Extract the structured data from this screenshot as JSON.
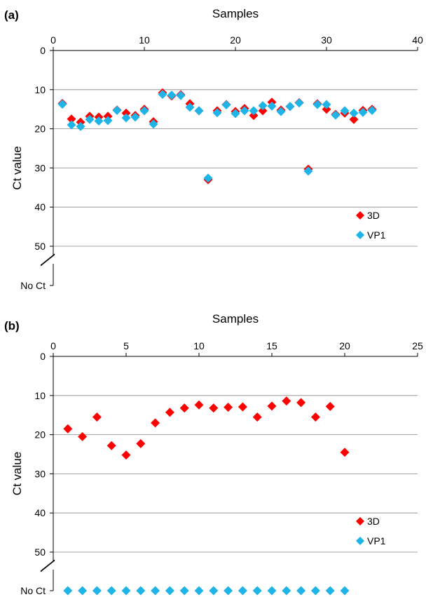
{
  "chart_data": [
    {
      "type": "scatter",
      "panel_label": "(a)",
      "xlabel": "Samples",
      "ylabel": "Ct value",
      "xlim": [
        0,
        40
      ],
      "ylim": [
        0,
        50
      ],
      "y_reversed": true,
      "x_axis_position": "top",
      "x_ticks": [
        0,
        10,
        20,
        30,
        40
      ],
      "y_ticks": [
        0,
        10,
        20,
        30,
        40,
        50
      ],
      "y_extra_tick": "No Ct",
      "axis_break": true,
      "grid": "horizontal",
      "legend_position": "bottom-right",
      "series": [
        {
          "name": "3D",
          "color": "#ff0000",
          "marker": "diamond",
          "points": [
            [
              1,
              13.5
            ],
            [
              2,
              17.5
            ],
            [
              3,
              18.3
            ],
            [
              4,
              16.8
            ],
            [
              5,
              17.0
            ],
            [
              6,
              16.8
            ],
            [
              7,
              15.2
            ],
            [
              8,
              16.0
            ],
            [
              9,
              16.6
            ],
            [
              10,
              15.0
            ],
            [
              11,
              18.2
            ],
            [
              12,
              10.8
            ],
            [
              13,
              11.6
            ],
            [
              14,
              11.3
            ],
            [
              15,
              13.6
            ],
            [
              16,
              15.4
            ],
            [
              17,
              33.0
            ],
            [
              18,
              15.4
            ],
            [
              19,
              13.8
            ],
            [
              20,
              15.6
            ],
            [
              21,
              14.8
            ],
            [
              22,
              16.6
            ],
            [
              23,
              15.4
            ],
            [
              24,
              13.2
            ],
            [
              25,
              15.2
            ],
            [
              26,
              14.3
            ],
            [
              27,
              13.3
            ],
            [
              28,
              30.3
            ],
            [
              29,
              13.6
            ],
            [
              30,
              15.0
            ],
            [
              31,
              16.3
            ],
            [
              32,
              16.0
            ],
            [
              33,
              17.6
            ],
            [
              34,
              15.3
            ],
            [
              35,
              15.0
            ]
          ]
        },
        {
          "name": "VP1",
          "color": "#1eb4e8",
          "marker": "diamond",
          "points": [
            [
              1,
              13.7
            ],
            [
              2,
              19.0
            ],
            [
              3,
              19.4
            ],
            [
              4,
              17.6
            ],
            [
              5,
              18.0
            ],
            [
              6,
              17.9
            ],
            [
              7,
              15.3
            ],
            [
              8,
              17.2
            ],
            [
              9,
              17.0
            ],
            [
              10,
              15.4
            ],
            [
              11,
              18.8
            ],
            [
              12,
              11.2
            ],
            [
              13,
              11.4
            ],
            [
              14,
              11.5
            ],
            [
              15,
              14.5
            ],
            [
              16,
              15.4
            ],
            [
              17,
              32.6
            ],
            [
              18,
              15.9
            ],
            [
              19,
              13.9
            ],
            [
              20,
              16.1
            ],
            [
              21,
              15.4
            ],
            [
              22,
              15.4
            ],
            [
              23,
              14.1
            ],
            [
              24,
              14.2
            ],
            [
              25,
              15.6
            ],
            [
              26,
              14.3
            ],
            [
              27,
              13.4
            ],
            [
              28,
              30.8
            ],
            [
              29,
              13.8
            ],
            [
              30,
              13.8
            ],
            [
              31,
              16.5
            ],
            [
              32,
              15.4
            ],
            [
              33,
              16.0
            ],
            [
              34,
              15.8
            ],
            [
              35,
              15.3
            ]
          ]
        }
      ]
    },
    {
      "type": "scatter",
      "panel_label": "(b)",
      "xlabel": "Samples",
      "ylabel": "Ct value",
      "xlim": [
        0,
        25
      ],
      "ylim": [
        0,
        50
      ],
      "y_reversed": true,
      "x_axis_position": "top",
      "x_ticks": [
        0,
        5,
        10,
        15,
        20,
        25
      ],
      "y_ticks": [
        0,
        10,
        20,
        30,
        40,
        50
      ],
      "y_extra_tick": "No Ct",
      "axis_break": true,
      "grid": "horizontal",
      "legend_position": "bottom-right",
      "series": [
        {
          "name": "3D",
          "color": "#ff0000",
          "marker": "diamond",
          "points": [
            [
              1,
              18.5
            ],
            [
              2,
              20.5
            ],
            [
              3,
              15.5
            ],
            [
              4,
              22.8
            ],
            [
              5,
              25.2
            ],
            [
              6,
              22.3
            ],
            [
              7,
              17.0
            ],
            [
              8,
              14.3
            ],
            [
              9,
              13.2
            ],
            [
              10,
              12.4
            ],
            [
              11,
              13.2
            ],
            [
              12,
              13.0
            ],
            [
              13,
              12.9
            ],
            [
              14,
              15.5
            ],
            [
              15,
              12.7
            ],
            [
              16,
              11.4
            ],
            [
              17,
              11.8
            ],
            [
              18,
              15.5
            ],
            [
              19,
              12.8
            ],
            [
              20,
              24.5
            ]
          ]
        },
        {
          "name": "VP1",
          "color": "#1eb4e8",
          "marker": "diamond",
          "no_ct_samples": [
            1,
            2,
            3,
            4,
            5,
            6,
            7,
            8,
            9,
            10,
            11,
            12,
            13,
            14,
            15,
            16,
            17,
            18,
            19,
            20
          ],
          "points": []
        }
      ]
    }
  ]
}
